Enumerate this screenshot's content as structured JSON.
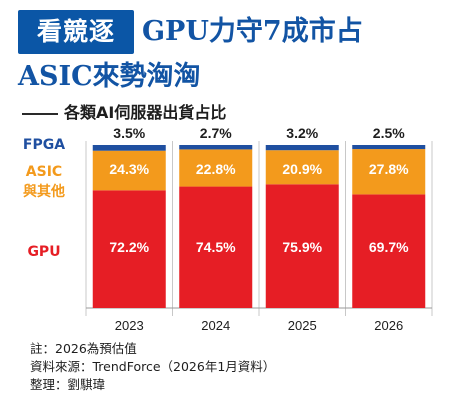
{
  "header": {
    "badge": "看競逐",
    "title_line1": "GPU力守7成市占",
    "title_line2": "ASIC來勢洶洶",
    "subtitle": "各類AI伺服器出貨占比"
  },
  "colors": {
    "brand_blue": "#0b56a6",
    "fpga": "#1f4fa0",
    "asic": "#f39a1c",
    "gpu": "#e61e25",
    "grid": "#c8c8c8"
  },
  "chart_data": {
    "type": "bar",
    "stacked": true,
    "percent_stacked": true,
    "categories": [
      "2023",
      "2024",
      "2025",
      "2026"
    ],
    "series": [
      {
        "name": "GPU",
        "label_lines": [
          "GPU"
        ],
        "color": "#e61e25",
        "values": [
          72.2,
          74.5,
          75.9,
          69.7
        ],
        "labels": [
          "72.2%",
          "74.5%",
          "75.9%",
          "69.7%"
        ]
      },
      {
        "name": "ASIC與其他",
        "label_lines": [
          "ASIC",
          "與其他"
        ],
        "color": "#f39a1c",
        "values": [
          24.3,
          22.8,
          20.9,
          27.8
        ],
        "labels": [
          "24.3%",
          "22.8%",
          "20.9%",
          "27.8%"
        ]
      },
      {
        "name": "FPGA",
        "label_lines": [
          "FPGA"
        ],
        "color": "#1f4fa0",
        "values": [
          3.5,
          2.7,
          3.2,
          2.5
        ],
        "labels": [
          "3.5%",
          "2.7%",
          "3.2%",
          "2.5%"
        ]
      }
    ],
    "ylim": [
      0,
      100
    ],
    "grid": true,
    "legend": "left"
  },
  "notes": {
    "note": "註：2026為預估值",
    "source": "資料來源：TrendForce（2026年1月資料）",
    "editor": "整理：劉騏瑋"
  }
}
